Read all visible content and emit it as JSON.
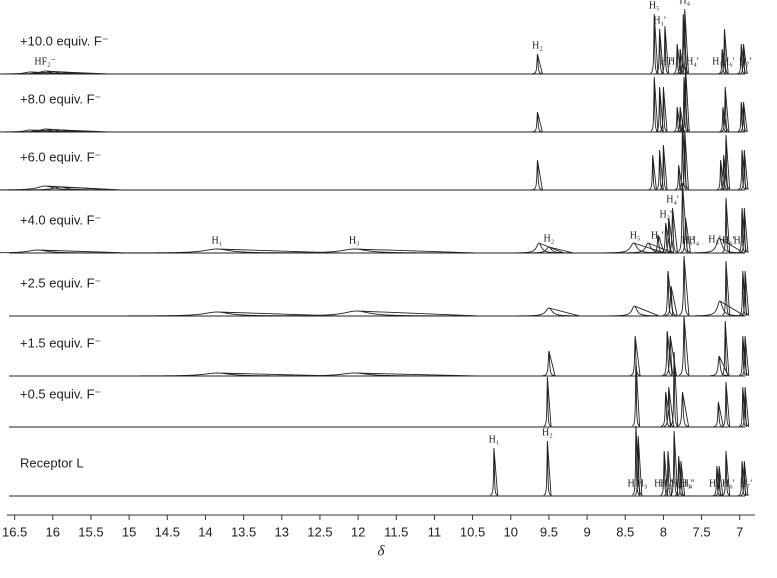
{
  "chart_data": {
    "type": "stacked-spectra",
    "x_label": "δ",
    "xlim": [
      16.6,
      6.8
    ],
    "xticks": [
      16.5,
      16.0,
      15.5,
      15.0,
      14.5,
      14.0,
      13.5,
      13.0,
      12.5,
      12.0,
      11.5,
      11.0,
      10.5,
      10.0,
      9.5,
      9.0,
      8.5,
      8.0,
      7.5,
      7.0
    ],
    "color": "#222222",
    "series": [
      {
        "name": "+10.0 equiv. F⁻",
        "x": [
          16.3,
          16.1,
          15.9,
          9.65,
          8.12,
          8.05,
          7.98,
          7.82,
          7.78,
          7.74,
          7.72,
          7.23,
          7.2,
          6.98,
          6.95
        ],
        "values": [
          2,
          3,
          2,
          20,
          60,
          45,
          48,
          30,
          25,
          60,
          65,
          25,
          45,
          30,
          30
        ],
        "widths": [
          0.08,
          0.08,
          0.08,
          0.008,
          0.006,
          0.006,
          0.006,
          0.006,
          0.006,
          0.006,
          0.006,
          0.006,
          0.006,
          0.006,
          0.006
        ],
        "annotations": [
          {
            "text": "HF₂⁻",
            "x": 16.1
          },
          {
            "text": "H₂",
            "x": 9.65
          },
          {
            "text": "H₅",
            "x": 8.12
          },
          {
            "text": "H₁'",
            "x": 8.05
          },
          {
            "text": "H₂'",
            "x": 7.96
          },
          {
            "text": "H₃'",
            "x": 7.86
          },
          {
            "text": "H₄",
            "x": 7.72
          },
          {
            "text": "H₄'",
            "x": 7.62
          },
          {
            "text": "H₅'",
            "x": 7.28
          },
          {
            "text": "H₆'",
            "x": 7.15
          },
          {
            "text": "H₇'",
            "x": 6.93
          }
        ]
      },
      {
        "name": "+8.0 equiv. F⁻",
        "x": [
          16.3,
          16.1,
          15.9,
          9.65,
          8.12,
          8.05,
          8.0,
          7.82,
          7.78,
          7.73,
          7.71,
          7.22,
          7.19,
          6.98,
          6.95
        ],
        "values": [
          2,
          3,
          2,
          20,
          55,
          45,
          45,
          25,
          25,
          55,
          65,
          25,
          45,
          30,
          30
        ],
        "widths": [
          0.08,
          0.08,
          0.08,
          0.008,
          0.006,
          0.006,
          0.006,
          0.006,
          0.006,
          0.006,
          0.006,
          0.006,
          0.006,
          0.006,
          0.006
        ],
        "annotations": []
      },
      {
        "name": "+6.0 equiv. F⁻",
        "x": [
          16.1,
          15.9,
          9.65,
          8.14,
          8.05,
          8.0,
          7.8,
          7.75,
          7.72,
          7.25,
          7.21,
          7.18,
          6.97,
          6.94
        ],
        "values": [
          4,
          3,
          30,
          35,
          40,
          45,
          25,
          70,
          60,
          30,
          35,
          55,
          40,
          40
        ],
        "widths": [
          0.12,
          0.1,
          0.008,
          0.006,
          0.006,
          0.006,
          0.006,
          0.006,
          0.006,
          0.006,
          0.006,
          0.006,
          0.006,
          0.006
        ],
        "annotations": []
      },
      {
        "name": "+4.0 equiv. F⁻",
        "x": [
          16.2,
          13.85,
          12.05,
          9.63,
          9.5,
          8.39,
          8.2,
          8.07,
          7.97,
          7.93,
          7.88,
          7.75,
          7.71,
          7.27,
          7.18,
          6.97,
          6.94
        ],
        "values": [
          3,
          4,
          4,
          10,
          6,
          10,
          10,
          18,
          30,
          35,
          45,
          70,
          35,
          15,
          55,
          45,
          45
        ],
        "widths": [
          0.15,
          0.2,
          0.2,
          0.04,
          0.04,
          0.05,
          0.04,
          0.01,
          0.008,
          0.008,
          0.008,
          0.008,
          0.008,
          0.04,
          0.006,
          0.006,
          0.006
        ],
        "annotations": [
          {
            "text": "H₁",
            "x": 13.85
          },
          {
            "text": "H₃",
            "x": 12.05
          },
          {
            "text": "H₂",
            "x": 9.5
          },
          {
            "text": "H₅",
            "x": 8.37
          },
          {
            "text": "H₁'",
            "x": 8.08
          },
          {
            "text": "H₂'",
            "x": 7.97
          },
          {
            "text": "H₄'",
            "x": 7.88
          },
          {
            "text": "H₄",
            "x": 7.6
          },
          {
            "text": "H₃'",
            "x": 7.68
          },
          {
            "text": "H₅'",
            "x": 7.33
          },
          {
            "text": "H₆'",
            "x": 7.15
          },
          {
            "text": "H₇'",
            "x": 7.0
          }
        ]
      },
      {
        "name": "+2.5  equiv. F⁻",
        "x": [
          13.85,
          12.02,
          9.5,
          8.38,
          7.94,
          7.9,
          7.73,
          7.26,
          7.18,
          6.96,
          6.93
        ],
        "values": [
          4,
          5,
          8,
          10,
          45,
          30,
          60,
          15,
          55,
          45,
          45
        ],
        "widths": [
          0.2,
          0.2,
          0.05,
          0.04,
          0.008,
          0.01,
          0.008,
          0.04,
          0.006,
          0.006,
          0.006
        ],
        "annotations": []
      },
      {
        "name": "+1.5  equiv. F⁻",
        "x": [
          13.85,
          12.05,
          9.5,
          8.37,
          7.95,
          7.91,
          7.73,
          7.27,
          7.19,
          6.96,
          6.93
        ],
        "values": [
          3,
          3,
          25,
          40,
          45,
          40,
          60,
          20,
          55,
          40,
          40
        ],
        "widths": [
          0.2,
          0.2,
          0.01,
          0.008,
          0.008,
          0.01,
          0.008,
          0.015,
          0.006,
          0.006,
          0.006
        ],
        "annotations": []
      },
      {
        "name": "+0.5 equiv. F⁻",
        "x": [
          9.52,
          8.36,
          7.97,
          7.93,
          7.86,
          7.75,
          7.28,
          7.18,
          6.96,
          6.93
        ],
        "values": [
          50,
          65,
          35,
          40,
          75,
          35,
          25,
          45,
          40,
          40
        ],
        "widths": [
          0.006,
          0.006,
          0.008,
          0.008,
          0.006,
          0.01,
          0.008,
          0.006,
          0.006,
          0.006
        ],
        "annotations": []
      },
      {
        "name": "Receptor L",
        "x": [
          10.22,
          9.52,
          8.36,
          8.33,
          7.99,
          7.94,
          7.86,
          7.8,
          7.77,
          7.3,
          7.27,
          7.18,
          6.97,
          6.94
        ],
        "values": [
          48,
          55,
          70,
          60,
          45,
          45,
          65,
          40,
          35,
          30,
          30,
          45,
          35,
          35
        ],
        "widths": [
          0.006,
          0.006,
          0.006,
          0.006,
          0.006,
          0.006,
          0.006,
          0.006,
          0.006,
          0.006,
          0.006,
          0.006,
          0.006,
          0.006
        ],
        "annotations": [
          {
            "text": "H₁",
            "x": 10.22
          },
          {
            "text": "H₂",
            "x": 9.52
          },
          {
            "text": "H₃",
            "x": 8.4
          },
          {
            "text": "H₃",
            "x": 8.28
          },
          {
            "text": "H₁'",
            "x": 8.04
          },
          {
            "text": "H₂'",
            "x": 7.96
          },
          {
            "text": "H₄",
            "x": 7.83
          },
          {
            "text": "H₃'",
            "x": 7.7
          },
          {
            "text": "H₄'",
            "x": 7.68
          },
          {
            "text": "H₅'",
            "x": 7.32
          },
          {
            "text": "H₆'",
            "x": 7.15
          },
          {
            "text": "H₇'",
            "x": 6.92
          }
        ]
      }
    ]
  }
}
